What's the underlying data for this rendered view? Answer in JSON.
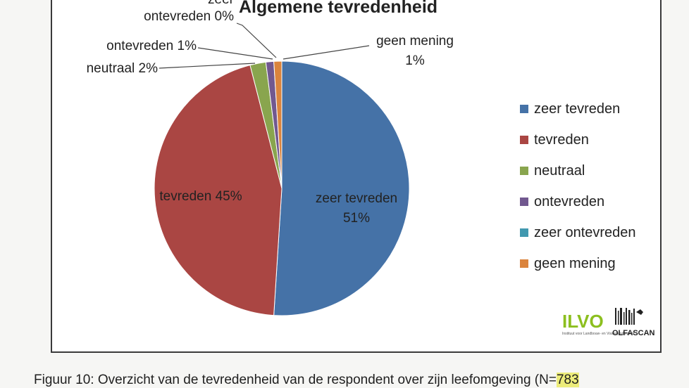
{
  "chart_data": {
    "type": "pie",
    "title": "Algemene tevredenheid",
    "slices": [
      {
        "name": "zeer tevreden",
        "value": 51,
        "color": "#4572a7",
        "label_lines": [
          "zeer tevreden",
          "51%"
        ]
      },
      {
        "name": "tevreden",
        "value": 45,
        "color": "#aa4643",
        "label_lines": [
          "tevreden 45%"
        ]
      },
      {
        "name": "neutraal",
        "value": 2,
        "color": "#89a54e",
        "label_lines": [
          "neutraal 2%"
        ]
      },
      {
        "name": "ontevreden",
        "value": 1,
        "color": "#71588f",
        "label_lines": [
          "ontevreden 1%"
        ]
      },
      {
        "name": "zeer ontevreden",
        "value": 0,
        "color": "#4198af",
        "label_lines": [
          "zeer",
          "ontevreden 0%"
        ]
      },
      {
        "name": "geen mening",
        "value": 1,
        "color": "#db843d",
        "label_lines": [
          "geen mening",
          "1%"
        ]
      }
    ],
    "legend_position": "right"
  },
  "logos": {
    "ilvo": "ILVO",
    "ilvo_subtitle": "Instituut voor Landbouw- en Visserijonderzoek",
    "olfascan": "OLFASCAN"
  },
  "caption": {
    "text": "Figuur 10: Overzicht van de tevredenheid van de respondent over zijn leefomgeving (N=",
    "highlight": "783"
  }
}
